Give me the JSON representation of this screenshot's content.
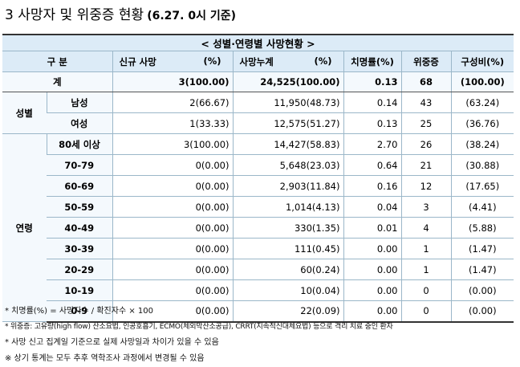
{
  "title": {
    "main": "3  사망자 및 위중증 현황",
    "sub": "(6.27. 0시 기준)"
  },
  "table": {
    "caption": "< 성별·연령별 사망현황 >",
    "headers": {
      "category": "구 분",
      "new_deaths": "신규 사망",
      "new_pct": "(%)",
      "cum_deaths": "사망누계",
      "cum_pct": "(%)",
      "fatality": "치명률(%)",
      "severe": "위중증",
      "composition": "구성비(%)"
    },
    "total": {
      "label": "계",
      "new": "3(100.00)",
      "cum": "24,525(100.00)",
      "fatality": "0.13",
      "severe": "68",
      "comp": "(100.00)"
    },
    "groups": {
      "sex": "성별",
      "age": "연령"
    },
    "sex_rows": [
      {
        "label": "남성",
        "new": "2(66.67)",
        "cum": "11,950(48.73)",
        "fatality": "0.14",
        "severe": "43",
        "comp": "(63.24)"
      },
      {
        "label": "여성",
        "new": "1(33.33)",
        "cum": "12,575(51.27)",
        "fatality": "0.13",
        "severe": "25",
        "comp": "(36.76)"
      }
    ],
    "age_rows": [
      {
        "label": "80세 이상",
        "new": "3(100.00)",
        "cum": "14,427(58.83)",
        "fatality": "2.70",
        "severe": "26",
        "comp": "(38.24)"
      },
      {
        "label": "70-79",
        "new": "0(0.00)",
        "cum": "5,648(23.03)",
        "fatality": "0.64",
        "severe": "21",
        "comp": "(30.88)"
      },
      {
        "label": "60-69",
        "new": "0(0.00)",
        "cum": "2,903(11.84)",
        "fatality": "0.16",
        "severe": "12",
        "comp": "(17.65)"
      },
      {
        "label": "50-59",
        "new": "0(0.00)",
        "cum": "1,014(4.13)",
        "fatality": "0.04",
        "severe": "3",
        "comp": "(4.41)"
      },
      {
        "label": "40-49",
        "new": "0(0.00)",
        "cum": "330(1.35)",
        "fatality": "0.01",
        "severe": "4",
        "comp": "(5.88)"
      },
      {
        "label": "30-39",
        "new": "0(0.00)",
        "cum": "111(0.45)",
        "fatality": "0.00",
        "severe": "1",
        "comp": "(1.47)"
      },
      {
        "label": "20-29",
        "new": "0(0.00)",
        "cum": "60(0.24)",
        "fatality": "0.00",
        "severe": "1",
        "comp": "(1.47)"
      },
      {
        "label": "10-19",
        "new": "0(0.00)",
        "cum": "10(0.04)",
        "fatality": "0.00",
        "severe": "0",
        "comp": "(0.00)"
      },
      {
        "label": "0-9",
        "new": "0(0.00)",
        "cum": "22(0.09)",
        "fatality": "0.00",
        "severe": "0",
        "comp": "(0.00)"
      }
    ]
  },
  "notes": [
    "* 치명률(%) = 사망자수 / 확진자수 × 100",
    "* 위중증: 고유량(high flow) 산소요법, 인공호흡기, ECMO(체외막산소공급), CRRT(지속적신대체요법) 등으로 격리 치료 중인 환자",
    "* 사망 신고 집계일 기준으로 실제 사망일과 차이가 있을 수 있음",
    "※ 상기 통계는 모두 추후 역학조사 과정에서 변경될 수 있음"
  ]
}
